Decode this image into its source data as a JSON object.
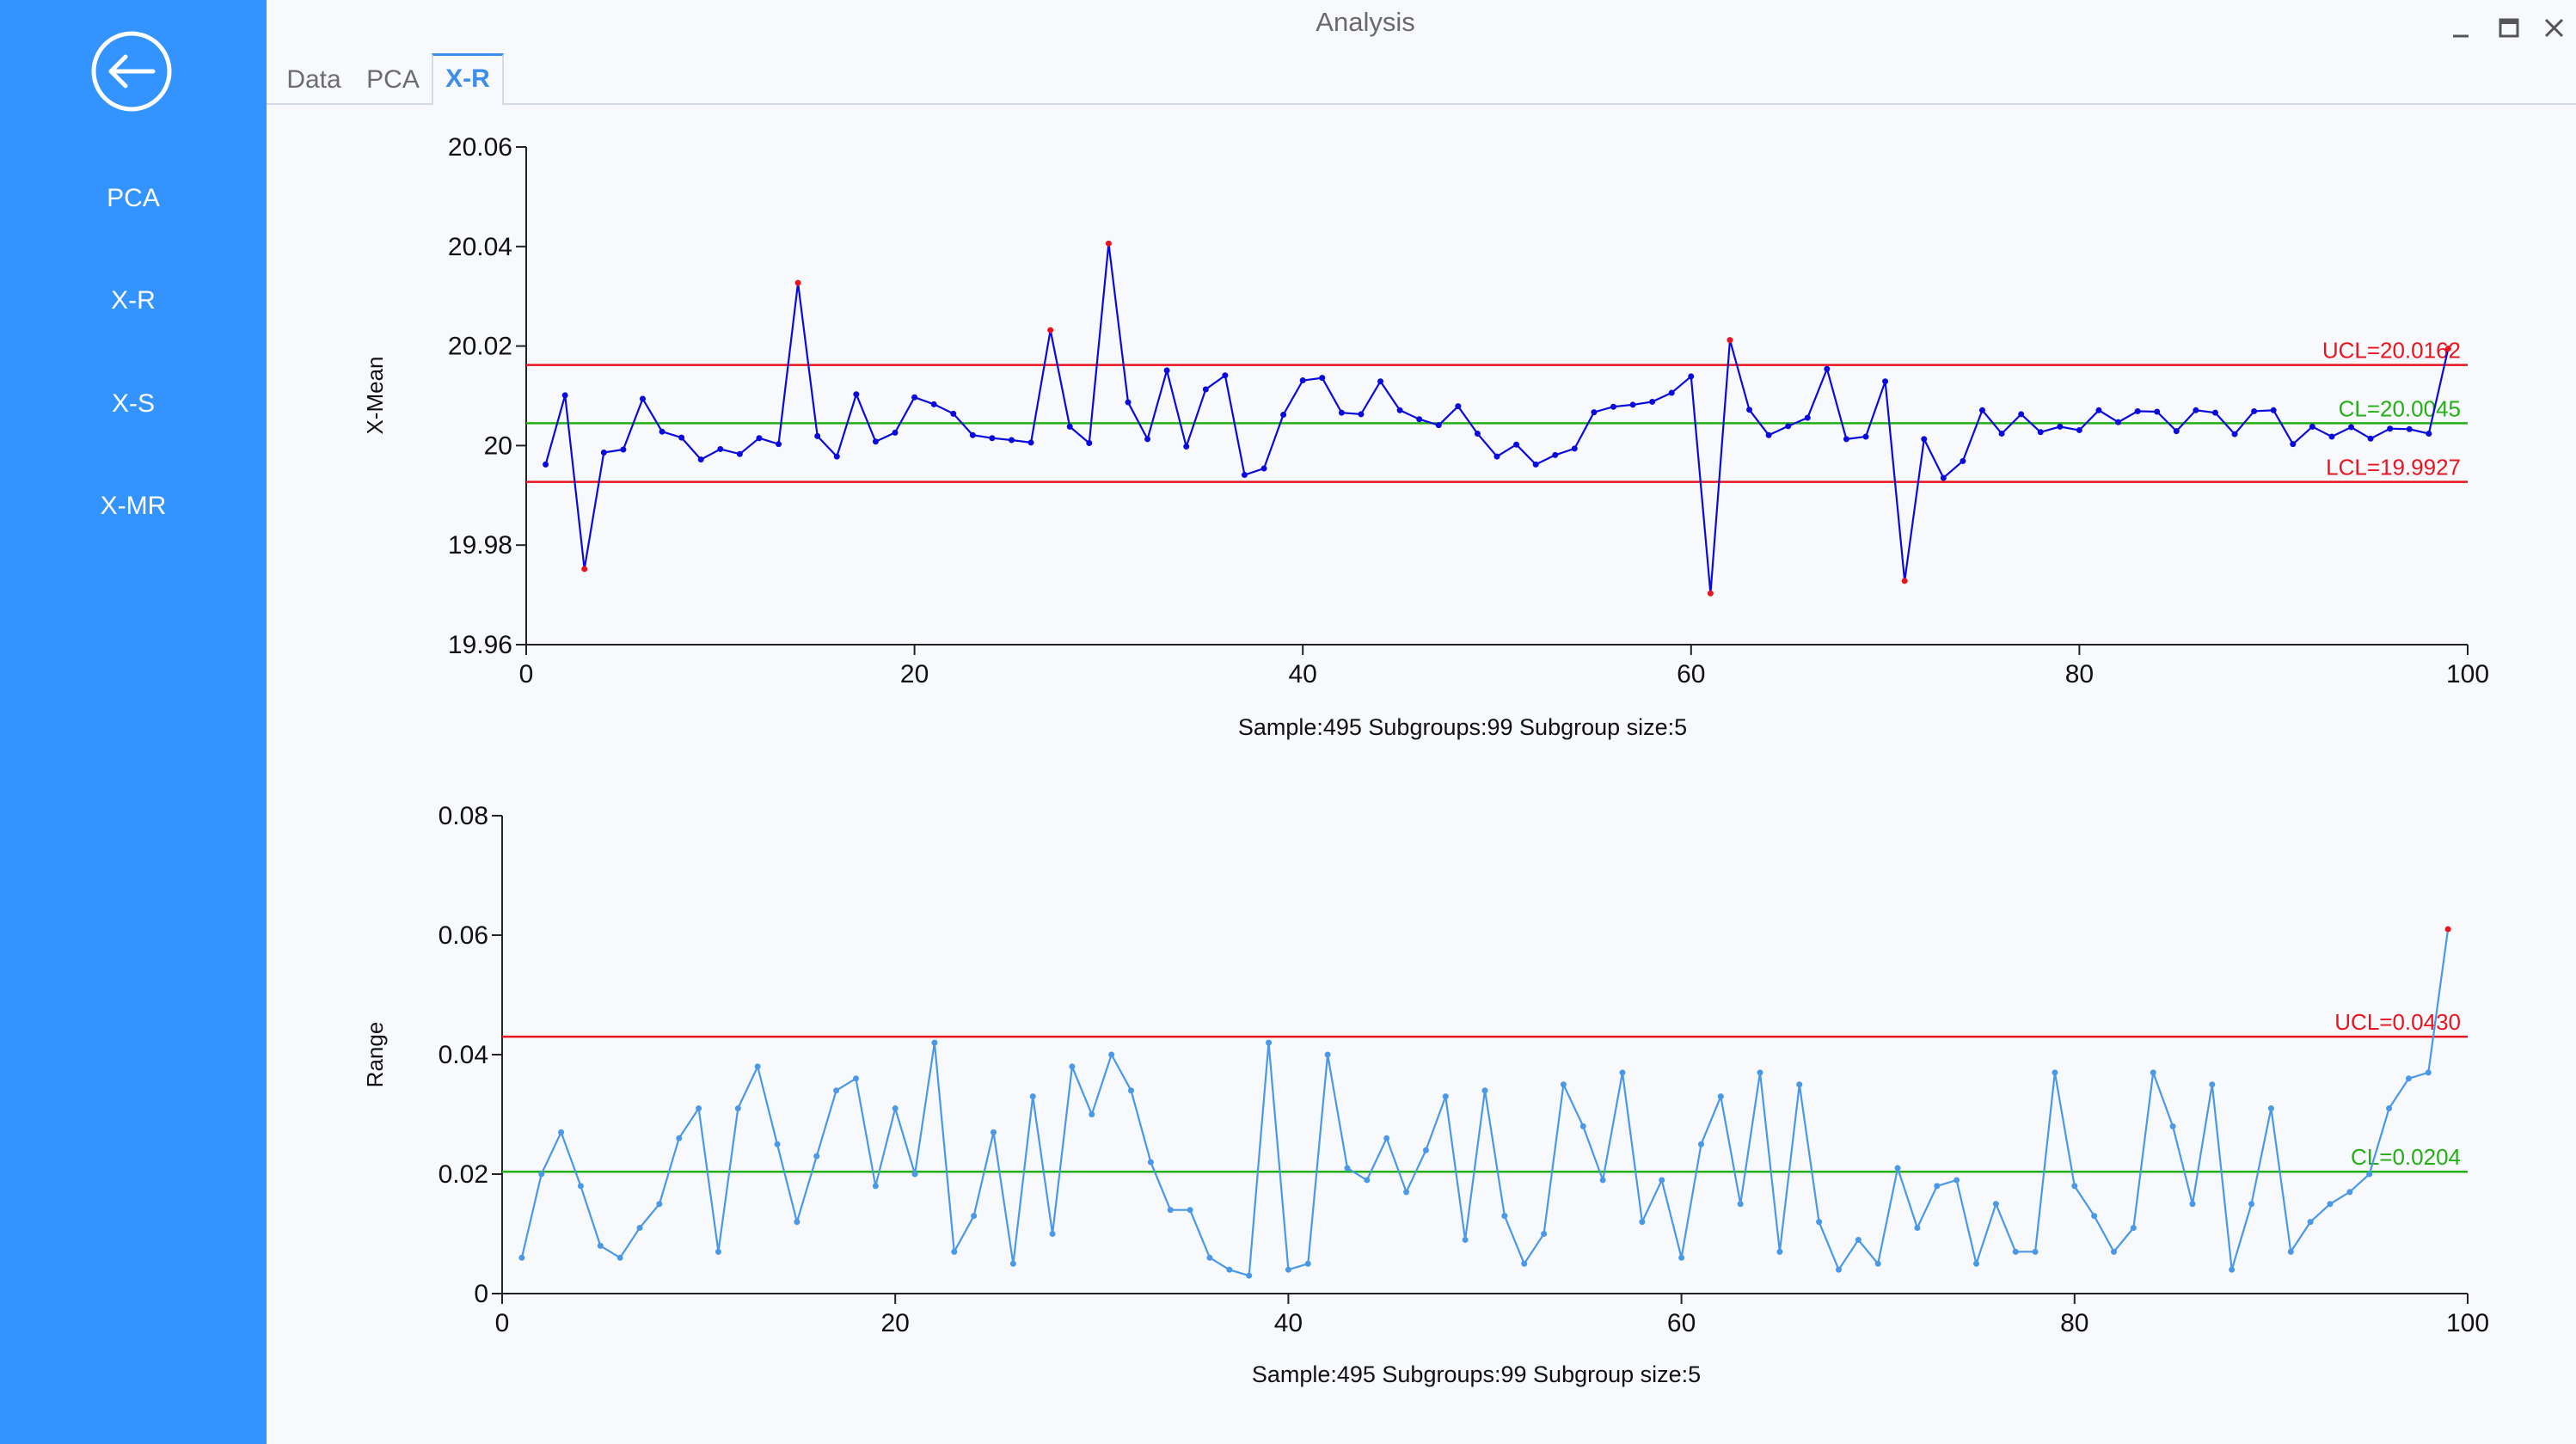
{
  "window": {
    "title": "Analysis"
  },
  "sidebar": {
    "items": [
      {
        "label": "PCA"
      },
      {
        "label": "X-R"
      },
      {
        "label": "X-S"
      },
      {
        "label": "X-MR"
      }
    ]
  },
  "tabs": [
    {
      "label": "Data",
      "active": false
    },
    {
      "label": "PCA",
      "active": false
    },
    {
      "label": "X-R",
      "active": true
    }
  ],
  "colors": {
    "sidebar": "#3393ff",
    "accent": "#3d8eea",
    "ucl_lcl": "#e8141e",
    "cl": "#22b014",
    "xbar_series": "#0a0adc",
    "range_series": "#4a98e8",
    "out_of_control_point": "#e8141e"
  },
  "icons": {
    "back": "back-arrow-icon",
    "minimize": "minimize-icon",
    "maximize": "maximize-icon",
    "close": "close-icon"
  },
  "chart_data": [
    {
      "type": "line",
      "ylabel": "X-Mean",
      "xlabel": "",
      "xlim": [
        0,
        100
      ],
      "ylim": [
        19.96,
        20.06
      ],
      "xticks": [
        0,
        20,
        40,
        60,
        80,
        100
      ],
      "yticks": [
        "20.06",
        "20.04",
        "20.02",
        "20",
        "19.98",
        "19.96"
      ],
      "caption": "Sample:495  Subgroups:99  Subgroup size:5",
      "control_lines": [
        {
          "label": "UCL=20.0162",
          "value": 20.0162,
          "kind": "ucl"
        },
        {
          "label": "CL=20.0045",
          "value": 20.0045,
          "kind": "cl"
        },
        {
          "label": "LCL=19.9927",
          "value": 19.9927,
          "kind": "lcl"
        }
      ],
      "series": [
        {
          "x": [
            1,
            2,
            3,
            4,
            5,
            6,
            7,
            8,
            9,
            10,
            11,
            12,
            13,
            14,
            15,
            16,
            17,
            18,
            19,
            20,
            21,
            22,
            23,
            24,
            25,
            26,
            27,
            28,
            29,
            30,
            31,
            32,
            33,
            34,
            35,
            36,
            37,
            38,
            39,
            40,
            41,
            42,
            43,
            44,
            45,
            46,
            47,
            48,
            49,
            50,
            51,
            52,
            53,
            54,
            55,
            56,
            57,
            58,
            59,
            60,
            61,
            62,
            63,
            64,
            65,
            66,
            67,
            68,
            69,
            70,
            71,
            72,
            73,
            74,
            75,
            76,
            77,
            78,
            79,
            80,
            81,
            82,
            83,
            84,
            85,
            86,
            87,
            88,
            89,
            90,
            91,
            92,
            93,
            94,
            95,
            96,
            97,
            98,
            99
          ],
          "values": [
            19.9962,
            20.0101,
            19.9752,
            19.9986,
            19.9992,
            20.0094,
            20.0028,
            20.0016,
            19.9972,
            19.9993,
            19.9983,
            20.0015,
            20.0003,
            20.0327,
            20.0019,
            19.9978,
            20.0103,
            20.0008,
            20.0026,
            20.0097,
            20.0083,
            20.0064,
            20.0021,
            20.0015,
            20.0011,
            20.0006,
            20.0232,
            20.0038,
            20.0005,
            20.0406,
            20.0087,
            20.0013,
            20.0151,
            19.9998,
            20.0113,
            20.0141,
            19.9941,
            19.9954,
            20.0062,
            20.0131,
            20.0136,
            20.0066,
            20.0063,
            20.0129,
            20.0071,
            20.0053,
            20.0041,
            20.0079,
            20.0024,
            19.9978,
            20.0002,
            19.9962,
            19.9981,
            19.9994,
            20.0067,
            20.0078,
            20.0082,
            20.0088,
            20.0106,
            20.0139,
            19.9703,
            20.0212,
            20.0072,
            20.0021,
            20.0039,
            20.0056,
            20.0154,
            20.0013,
            20.0018,
            20.0129,
            19.9728,
            20.0013,
            19.9935,
            19.9969,
            20.0071,
            20.0024,
            20.0063,
            20.0027,
            20.0038,
            20.0031,
            20.0071,
            20.0047,
            20.0069,
            20.0068,
            20.0029,
            20.0071,
            20.0066,
            20.0023,
            20.0069,
            20.0071,
            20.0003,
            20.0038,
            20.0018,
            20.0037,
            20.0014,
            20.0034,
            20.0033,
            20.0024,
            20.0195
          ],
          "out_of_control_x": [
            3,
            14,
            27,
            30,
            61,
            62,
            71,
            99
          ]
        }
      ]
    },
    {
      "type": "line",
      "ylabel": "Range",
      "xlabel": "",
      "xlim": [
        0,
        100
      ],
      "ylim": [
        0,
        0.08
      ],
      "xticks": [
        0,
        20,
        40,
        60,
        80,
        100
      ],
      "yticks": [
        "0.08",
        "0.06",
        "0.04",
        "0.02",
        "0"
      ],
      "caption": "Sample:495  Subgroups:99  Subgroup size:5",
      "control_lines": [
        {
          "label": "UCL=0.0430",
          "value": 0.043,
          "kind": "ucl"
        },
        {
          "label": "CL=0.0204",
          "value": 0.0204,
          "kind": "cl"
        }
      ],
      "series": [
        {
          "x": [
            1,
            2,
            3,
            4,
            5,
            6,
            7,
            8,
            9,
            10,
            11,
            12,
            13,
            14,
            15,
            16,
            17,
            18,
            19,
            20,
            21,
            22,
            23,
            24,
            25,
            26,
            27,
            28,
            29,
            30,
            31,
            32,
            33,
            34,
            35,
            36,
            37,
            38,
            39,
            40,
            41,
            42,
            43,
            44,
            45,
            46,
            47,
            48,
            49,
            50,
            51,
            52,
            53,
            54,
            55,
            56,
            57,
            58,
            59,
            60,
            61,
            62,
            63,
            64,
            65,
            66,
            67,
            68,
            69,
            70,
            71,
            72,
            73,
            74,
            75,
            76,
            77,
            78,
            79,
            80,
            81,
            82,
            83,
            84,
            85,
            86,
            87,
            88,
            89,
            90,
            91,
            92,
            93,
            94,
            95,
            96,
            97,
            98,
            99
          ],
          "values": [
            0.006,
            0.02,
            0.027,
            0.018,
            0.008,
            0.006,
            0.011,
            0.015,
            0.026,
            0.031,
            0.007,
            0.031,
            0.038,
            0.025,
            0.012,
            0.023,
            0.034,
            0.036,
            0.018,
            0.031,
            0.02,
            0.042,
            0.007,
            0.013,
            0.027,
            0.005,
            0.033,
            0.01,
            0.038,
            0.03,
            0.04,
            0.034,
            0.022,
            0.014,
            0.014,
            0.006,
            0.004,
            0.003,
            0.042,
            0.004,
            0.005,
            0.04,
            0.021,
            0.019,
            0.026,
            0.017,
            0.024,
            0.033,
            0.009,
            0.034,
            0.013,
            0.005,
            0.01,
            0.035,
            0.028,
            0.019,
            0.037,
            0.012,
            0.019,
            0.006,
            0.025,
            0.033,
            0.015,
            0.037,
            0.007,
            0.035,
            0.012,
            0.004,
            0.009,
            0.005,
            0.021,
            0.011,
            0.018,
            0.019,
            0.005,
            0.015,
            0.007,
            0.007,
            0.037,
            0.018,
            0.013,
            0.007,
            0.011,
            0.037,
            0.028,
            0.015,
            0.035,
            0.004,
            0.015,
            0.031,
            0.007,
            0.012,
            0.015,
            0.017,
            0.02,
            0.031,
            0.036,
            0.037,
            0.061
          ],
          "out_of_control_x": [
            99
          ]
        }
      ]
    }
  ]
}
